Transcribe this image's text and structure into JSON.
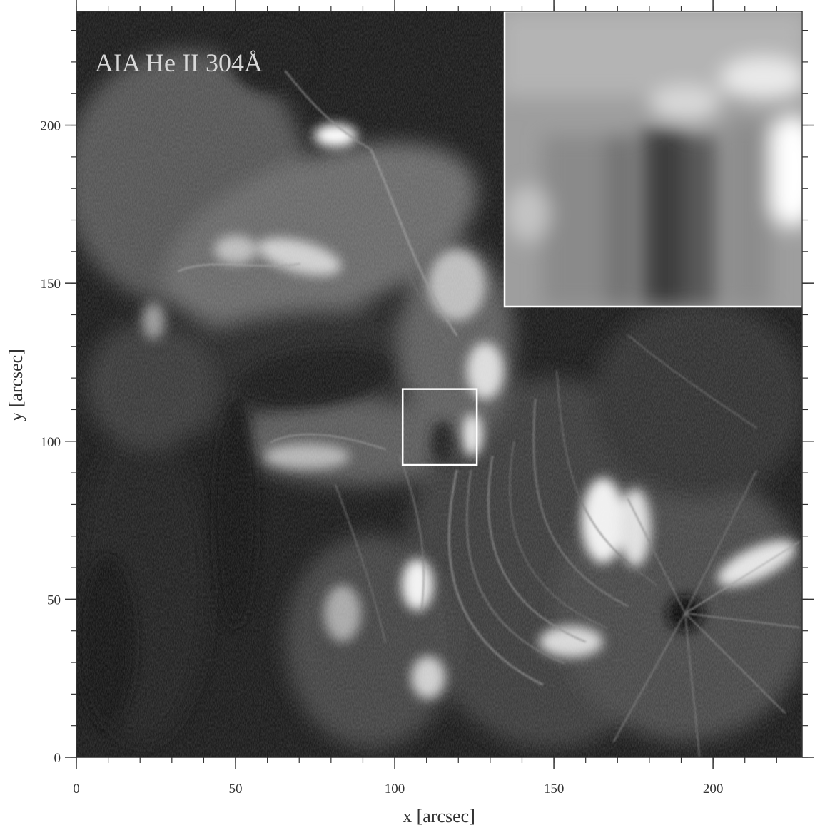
{
  "figure": {
    "overlay_label": "AIA He II 304Å",
    "x_axis": {
      "label": "x  [arcsec]",
      "range": [
        0,
        228
      ],
      "major_ticks": [
        0,
        50,
        100,
        150,
        200
      ],
      "major_tick_labels": [
        "0",
        "50",
        "100",
        "150",
        "200"
      ],
      "minor_step": 10
    },
    "y_axis": {
      "label": "y  [arcsec]",
      "range": [
        0,
        236
      ],
      "major_ticks": [
        0,
        50,
        100,
        150,
        200
      ],
      "major_tick_labels": [
        "0",
        "50",
        "100",
        "150",
        "200"
      ],
      "minor_step": 10
    },
    "roi_box": {
      "x_range": [
        102.5,
        125.8
      ],
      "y_range": [
        92.5,
        116.5
      ]
    },
    "inset": {
      "x_range": [
        135,
        228
      ],
      "y_range": [
        143.5,
        236
      ]
    },
    "colors": {
      "image_dark": "#151515",
      "structure_bright": "#f0f0f0",
      "box_outline": "#ffffff",
      "frame": "#333333"
    }
  }
}
